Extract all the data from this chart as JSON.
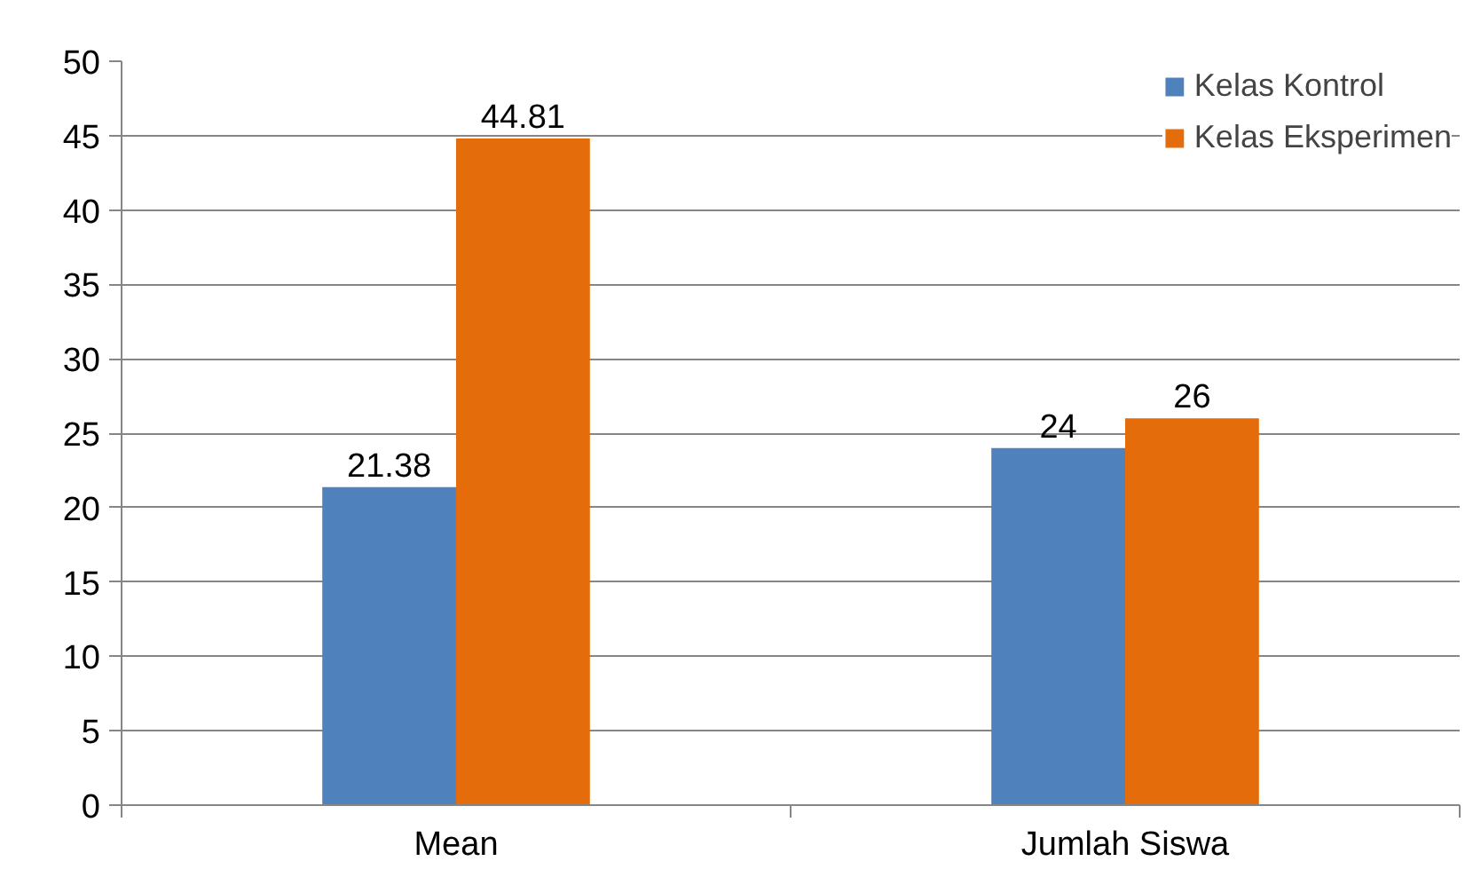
{
  "chart_data": {
    "type": "bar",
    "categories": [
      "Mean",
      "Jumlah Siswa"
    ],
    "series": [
      {
        "name": "Kelas Kontrol",
        "color": "#4f81bd",
        "values": [
          21.38,
          24
        ]
      },
      {
        "name": "Kelas Eksperimen",
        "color": "#e46c0a",
        "values": [
          44.81,
          26
        ]
      }
    ],
    "ylim": [
      0,
      50
    ],
    "yticks": [
      0,
      5,
      10,
      15,
      20,
      25,
      30,
      35,
      40,
      45,
      50
    ],
    "grid": "y",
    "legend": "top right",
    "data_labels": true
  }
}
